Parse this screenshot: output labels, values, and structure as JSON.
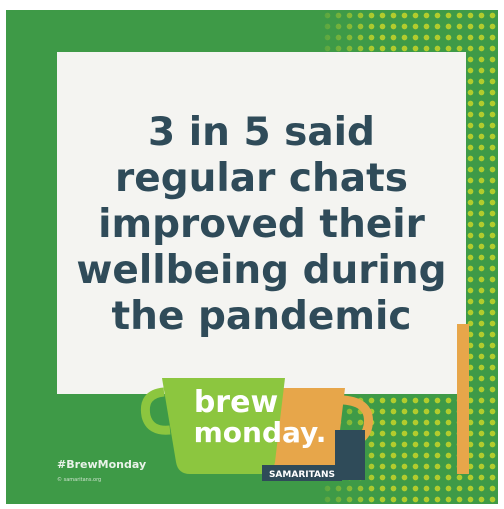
{
  "headline": {
    "line1": "3 in 5 said",
    "line2": "regular chats",
    "line3": "improved their",
    "line4": "wellbeing during",
    "line5": "the pandemic"
  },
  "logo": {
    "word1": "brew",
    "word2": "monday.",
    "org": "SAMARITANS"
  },
  "footer": {
    "hashtag": "#BrewMonday",
    "smallprint": "© samaritans.org"
  },
  "colors": {
    "background_green": "#3e9a47",
    "card": "#f4f4f1",
    "text_navy": "#2f4b59",
    "lime": "#b7cf2c",
    "orange": "#e7a64a"
  }
}
